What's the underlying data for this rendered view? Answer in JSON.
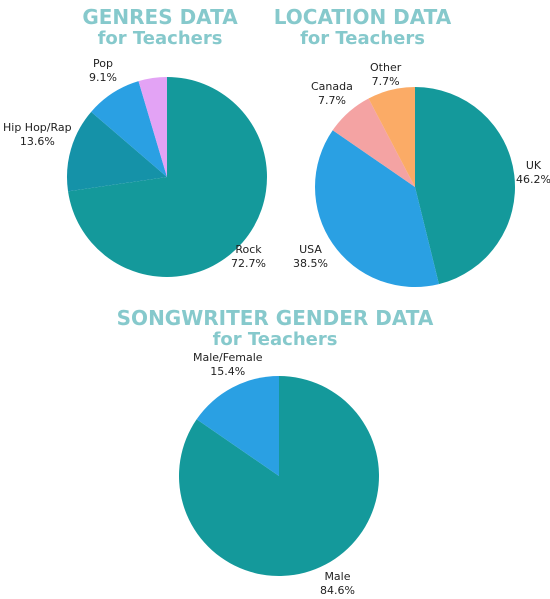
{
  "chart_data": [
    {
      "type": "pie",
      "title": "GENRES DATA",
      "subtitle": "for Teachers",
      "slices": [
        {
          "label": "Rock",
          "percent_label": "72.7%",
          "value": 72.7,
          "color": "#14999b"
        },
        {
          "label": "Hip Hop/Rap",
          "percent_label": "13.6%",
          "value": 13.6,
          "color": "#1592a8"
        },
        {
          "label": "Pop",
          "percent_label": "9.1%",
          "value": 9.1,
          "color": "#2aa0e3"
        },
        {
          "label": "",
          "percent_label": "",
          "value": 4.6,
          "color": "#e3a3f5"
        }
      ]
    },
    {
      "type": "pie",
      "title": "LOCATION DATA",
      "subtitle": "for Teachers",
      "slices": [
        {
          "label": "UK",
          "percent_label": "46.2%",
          "value": 46.2,
          "color": "#14999b"
        },
        {
          "label": "USA",
          "percent_label": "38.5%",
          "value": 38.5,
          "color": "#2aa0e3"
        },
        {
          "label": "Canada",
          "percent_label": "7.7%",
          "value": 7.7,
          "color": "#f4a3a3"
        },
        {
          "label": "Other",
          "percent_label": "7.7%",
          "value": 7.7,
          "color": "#fbab66"
        }
      ]
    },
    {
      "type": "pie",
      "title": "SONGWRITER GENDER DATA",
      "subtitle": "for Teachers",
      "slices": [
        {
          "label": "Male",
          "percent_label": "84.6%",
          "value": 84.6,
          "color": "#14999b"
        },
        {
          "label": "Male/Female",
          "percent_label": "15.4%",
          "value": 15.4,
          "color": "#2aa0e3"
        }
      ]
    }
  ]
}
